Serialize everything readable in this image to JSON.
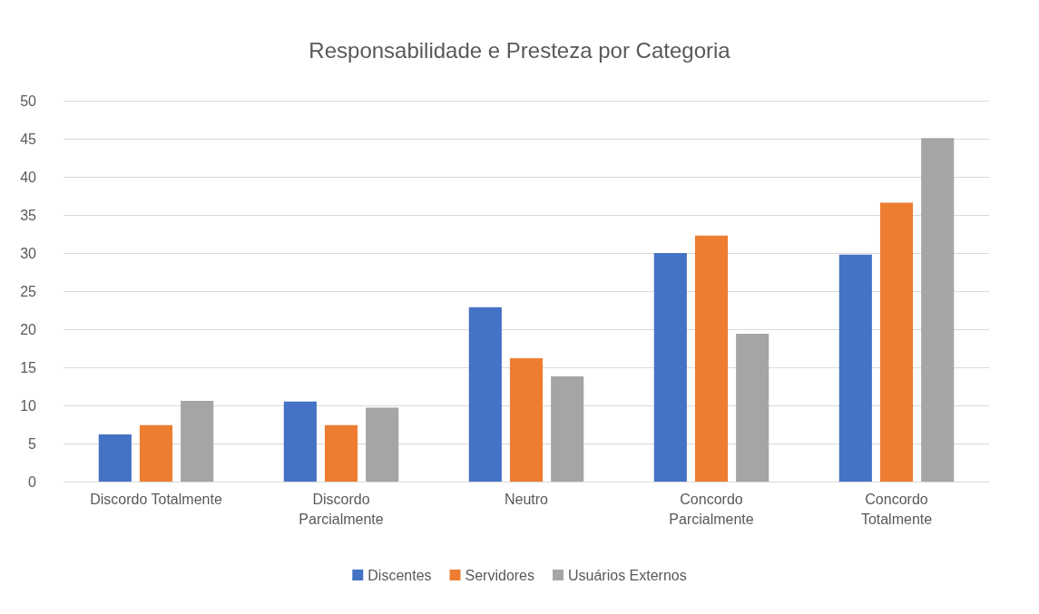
{
  "chart_data": {
    "type": "bar",
    "title": "Responsabilidade e Presteza por Categoria",
    "categories": [
      "Discordo Totalmente",
      "Discordo\nParcialmente",
      "Neutro",
      "Concordo\nParcialmente",
      "Concordo\nTotalmente"
    ],
    "series": [
      {
        "name": "Discentes",
        "color": "#4472c4",
        "values": [
          6.2,
          10.5,
          22.9,
          30.0,
          29.8
        ]
      },
      {
        "name": "Servidores",
        "color": "#ed7d31",
        "values": [
          7.4,
          7.4,
          16.2,
          32.3,
          36.6
        ]
      },
      {
        "name": "Usuários Externos",
        "color": "#a5a5a5",
        "values": [
          10.6,
          9.7,
          13.8,
          19.4,
          45.1
        ]
      }
    ],
    "ylim": [
      0,
      50
    ],
    "yticks": [
      0,
      5,
      10,
      15,
      20,
      25,
      30,
      35,
      40,
      45,
      50
    ],
    "grid": "y",
    "legend": "bottom"
  }
}
